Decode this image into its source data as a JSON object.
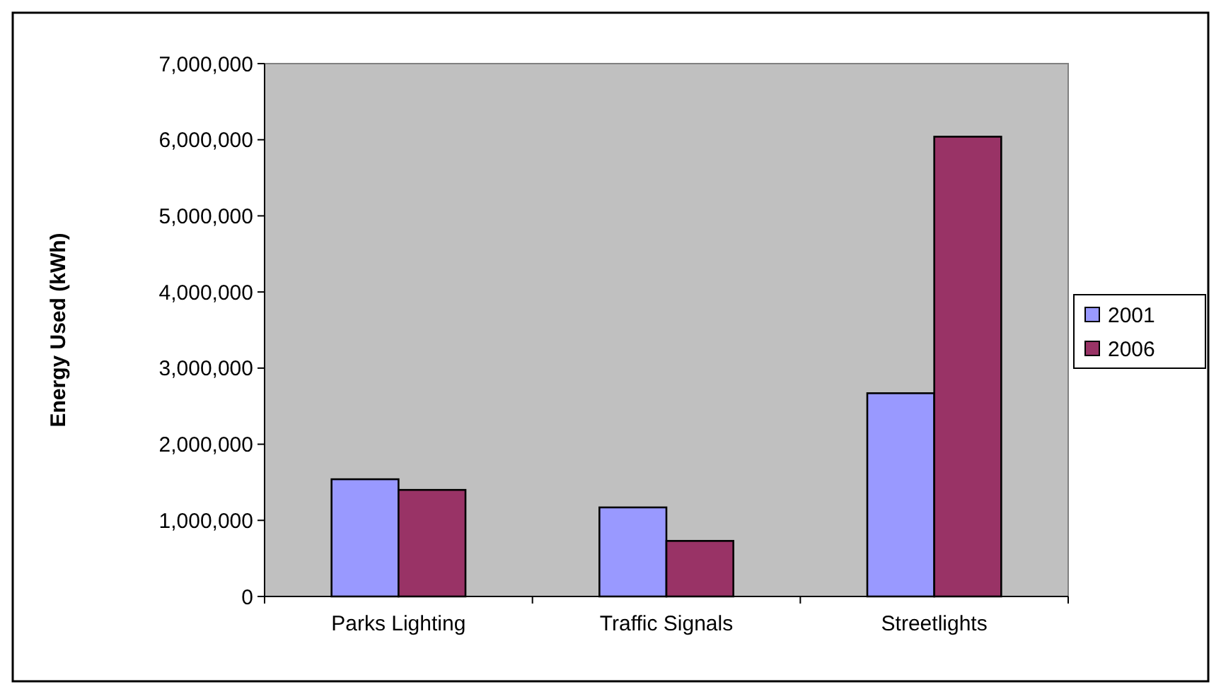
{
  "chart_data": {
    "type": "bar",
    "ylabel": "Energy Used (kWh)",
    "categories": [
      "Parks Lighting",
      "Traffic Signals",
      "Streetlights"
    ],
    "series": [
      {
        "name": "2001",
        "color": "#9999ff",
        "values": [
          1540000,
          1170000,
          2670000
        ]
      },
      {
        "name": "2006",
        "color": "#993366",
        "values": [
          1400000,
          730000,
          6040000
        ]
      }
    ],
    "ylim": [
      0,
      7000000
    ],
    "yticks": [
      {
        "value": 0,
        "label": "0"
      },
      {
        "value": 1000000,
        "label": "1,000,000"
      },
      {
        "value": 2000000,
        "label": "2,000,000"
      },
      {
        "value": 3000000,
        "label": "3,000,000"
      },
      {
        "value": 4000000,
        "label": "4,000,000"
      },
      {
        "value": 5000000,
        "label": "5,000,000"
      },
      {
        "value": 6000000,
        "label": "6,000,000"
      },
      {
        "value": 7000000,
        "label": "7,000,000"
      }
    ],
    "grid": false,
    "legend": "right"
  }
}
